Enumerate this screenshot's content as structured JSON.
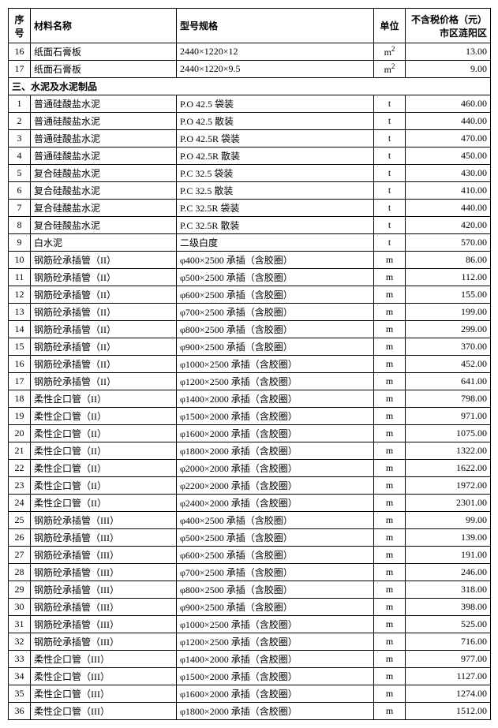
{
  "headers": {
    "seq": "序号",
    "name": "材料名称",
    "spec": "型号规格",
    "unit": "单位",
    "price": "不含税价格（元）市区涟阳区"
  },
  "preRows": [
    {
      "seq": "16",
      "name": "纸面石膏板",
      "spec": "2440×1220×12",
      "unit": "m²",
      "price": "13.00"
    },
    {
      "seq": "17",
      "name": "纸面石膏板",
      "spec": "2440×1220×9.5",
      "unit": "m²",
      "price": "9.00"
    }
  ],
  "sectionTitle": "三、水泥及水泥制品",
  "rows": [
    {
      "seq": "1",
      "name": "普通硅酸盐水泥",
      "spec": "P.O 42.5 袋装",
      "unit": "t",
      "price": "460.00"
    },
    {
      "seq": "2",
      "name": "普通硅酸盐水泥",
      "spec": "P.O 42.5 散装",
      "unit": "t",
      "price": "440.00"
    },
    {
      "seq": "3",
      "name": "普通硅酸盐水泥",
      "spec": "P.O 42.5R 袋装",
      "unit": "t",
      "price": "470.00"
    },
    {
      "seq": "4",
      "name": "普通硅酸盐水泥",
      "spec": "P.O 42.5R 散装",
      "unit": "t",
      "price": "450.00"
    },
    {
      "seq": "5",
      "name": "复合硅酸盐水泥",
      "spec": "P.C 32.5 袋装",
      "unit": "t",
      "price": "430.00"
    },
    {
      "seq": "6",
      "name": "复合硅酸盐水泥",
      "spec": "P.C 32.5 散装",
      "unit": "t",
      "price": "410.00"
    },
    {
      "seq": "7",
      "name": "复合硅酸盐水泥",
      "spec": "P.C 32.5R 袋装",
      "unit": "t",
      "price": "440.00"
    },
    {
      "seq": "8",
      "name": "复合硅酸盐水泥",
      "spec": "P.C 32.5R 散装",
      "unit": "t",
      "price": "420.00"
    },
    {
      "seq": "9",
      "name": "白水泥",
      "spec": "二级白度",
      "unit": "t",
      "price": "570.00"
    },
    {
      "seq": "10",
      "name": "钢筋砼承插管（II）",
      "spec": "φ400×2500 承插（含胶圈）",
      "unit": "m",
      "price": "86.00"
    },
    {
      "seq": "11",
      "name": "钢筋砼承插管（II）",
      "spec": "φ500×2500 承插（含胶圈）",
      "unit": "m",
      "price": "112.00"
    },
    {
      "seq": "12",
      "name": "钢筋砼承插管（II）",
      "spec": "φ600×2500 承插（含胶圈）",
      "unit": "m",
      "price": "155.00"
    },
    {
      "seq": "13",
      "name": "钢筋砼承插管（II）",
      "spec": "φ700×2500 承插（含胶圈）",
      "unit": "m",
      "price": "199.00"
    },
    {
      "seq": "14",
      "name": "钢筋砼承插管（II）",
      "spec": "φ800×2500 承插（含胶圈）",
      "unit": "m",
      "price": "299.00"
    },
    {
      "seq": "15",
      "name": "钢筋砼承插管（II）",
      "spec": "φ900×2500 承插（含胶圈）",
      "unit": "m",
      "price": "370.00"
    },
    {
      "seq": "16",
      "name": "钢筋砼承插管（II）",
      "spec": "φ1000×2500 承插（含胶圈）",
      "unit": "m",
      "price": "452.00"
    },
    {
      "seq": "17",
      "name": "钢筋砼承插管（II）",
      "spec": "φ1200×2500 承插（含胶圈）",
      "unit": "m",
      "price": "641.00"
    },
    {
      "seq": "18",
      "name": "柔性企口管（II）",
      "spec": "φ1400×2000 承插（含胶圈）",
      "unit": "m",
      "price": "798.00"
    },
    {
      "seq": "19",
      "name": "柔性企口管（II）",
      "spec": "φ1500×2000 承插（含胶圈）",
      "unit": "m",
      "price": "971.00"
    },
    {
      "seq": "20",
      "name": "柔性企口管（II）",
      "spec": "φ1600×2000 承插（含胶圈）",
      "unit": "m",
      "price": "1075.00"
    },
    {
      "seq": "21",
      "name": "柔性企口管（II）",
      "spec": "φ1800×2000 承插（含胶圈）",
      "unit": "m",
      "price": "1322.00"
    },
    {
      "seq": "22",
      "name": "柔性企口管（II）",
      "spec": "φ2000×2000 承插（含胶圈）",
      "unit": "m",
      "price": "1622.00"
    },
    {
      "seq": "23",
      "name": "柔性企口管（II）",
      "spec": "φ2200×2000 承插（含胶圈）",
      "unit": "m",
      "price": "1972.00"
    },
    {
      "seq": "24",
      "name": "柔性企口管（II）",
      "spec": "φ2400×2000 承插（含胶圈）",
      "unit": "m",
      "price": "2301.00"
    },
    {
      "seq": "25",
      "name": "钢筋砼承插管（III）",
      "spec": "φ400×2500 承插（含胶圈）",
      "unit": "m",
      "price": "99.00"
    },
    {
      "seq": "26",
      "name": "钢筋砼承插管（III）",
      "spec": "φ500×2500 承插（含胶圈）",
      "unit": "m",
      "price": "139.00"
    },
    {
      "seq": "27",
      "name": "钢筋砼承插管（III）",
      "spec": "φ600×2500 承插（含胶圈）",
      "unit": "m",
      "price": "191.00"
    },
    {
      "seq": "28",
      "name": "钢筋砼承插管（III）",
      "spec": "φ700×2500 承插（含胶圈）",
      "unit": "m",
      "price": "246.00"
    },
    {
      "seq": "29",
      "name": "钢筋砼承插管（III）",
      "spec": "φ800×2500 承插（含胶圈）",
      "unit": "m",
      "price": "318.00"
    },
    {
      "seq": "30",
      "name": "钢筋砼承插管（III）",
      "spec": "φ900×2500 承插（含胶圈）",
      "unit": "m",
      "price": "398.00"
    },
    {
      "seq": "31",
      "name": "钢筋砼承插管（III）",
      "spec": "φ1000×2500 承插（含胶圈）",
      "unit": "m",
      "price": "525.00"
    },
    {
      "seq": "32",
      "name": "钢筋砼承插管（III）",
      "spec": "φ1200×2500 承插（含胶圈）",
      "unit": "m",
      "price": "716.00"
    },
    {
      "seq": "33",
      "name": "柔性企口管（III）",
      "spec": "φ1400×2000 承插（含胶圈）",
      "unit": "m",
      "price": "977.00"
    },
    {
      "seq": "34",
      "name": "柔性企口管（III）",
      "spec": "φ1500×2000 承插（含胶圈）",
      "unit": "m",
      "price": "1127.00"
    },
    {
      "seq": "35",
      "name": "柔性企口管（III）",
      "spec": "φ1600×2000 承插（含胶圈）",
      "unit": "m",
      "price": "1274.00"
    },
    {
      "seq": "36",
      "name": "柔性企口管（III）",
      "spec": "φ1800×2000 承插（含胶圈）",
      "unit": "m",
      "price": "1512.00"
    }
  ]
}
